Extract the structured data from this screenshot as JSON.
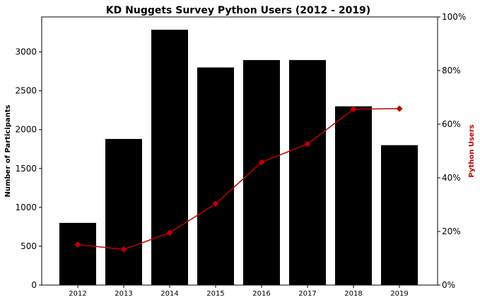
{
  "chart_data": {
    "type": "bar",
    "title": "KD Nuggets Survey Python Users (2012 - 2019)",
    "xlabel": "",
    "ylabel": "Number of Participants",
    "y2label": "Python Users",
    "categories": [
      "2012",
      "2013",
      "2014",
      "2015",
      "2016",
      "2017",
      "2018",
      "2019"
    ],
    "ylim": [
      0,
      3450
    ],
    "y_ticks": [
      0,
      500,
      1000,
      1500,
      2000,
      2500,
      3000
    ],
    "y2lim": [
      0,
      100
    ],
    "y2_ticks": [
      0,
      20,
      40,
      60,
      80,
      100
    ],
    "y2_tick_labels": [
      "0%",
      "20%",
      "40%",
      "60%",
      "80%",
      "100%"
    ],
    "grid": false,
    "series": [
      {
        "type": "bar",
        "axis": "left",
        "color": "#000000",
        "values": [
          800,
          1880,
          3285,
          2800,
          2895,
          2895,
          2300,
          1800
        ]
      },
      {
        "type": "line",
        "axis": "right",
        "color": "#c00000",
        "marker": "diamond",
        "values": [
          15.1,
          13.3,
          19.5,
          30.3,
          45.8,
          52.6,
          65.6,
          65.8
        ]
      }
    ]
  }
}
